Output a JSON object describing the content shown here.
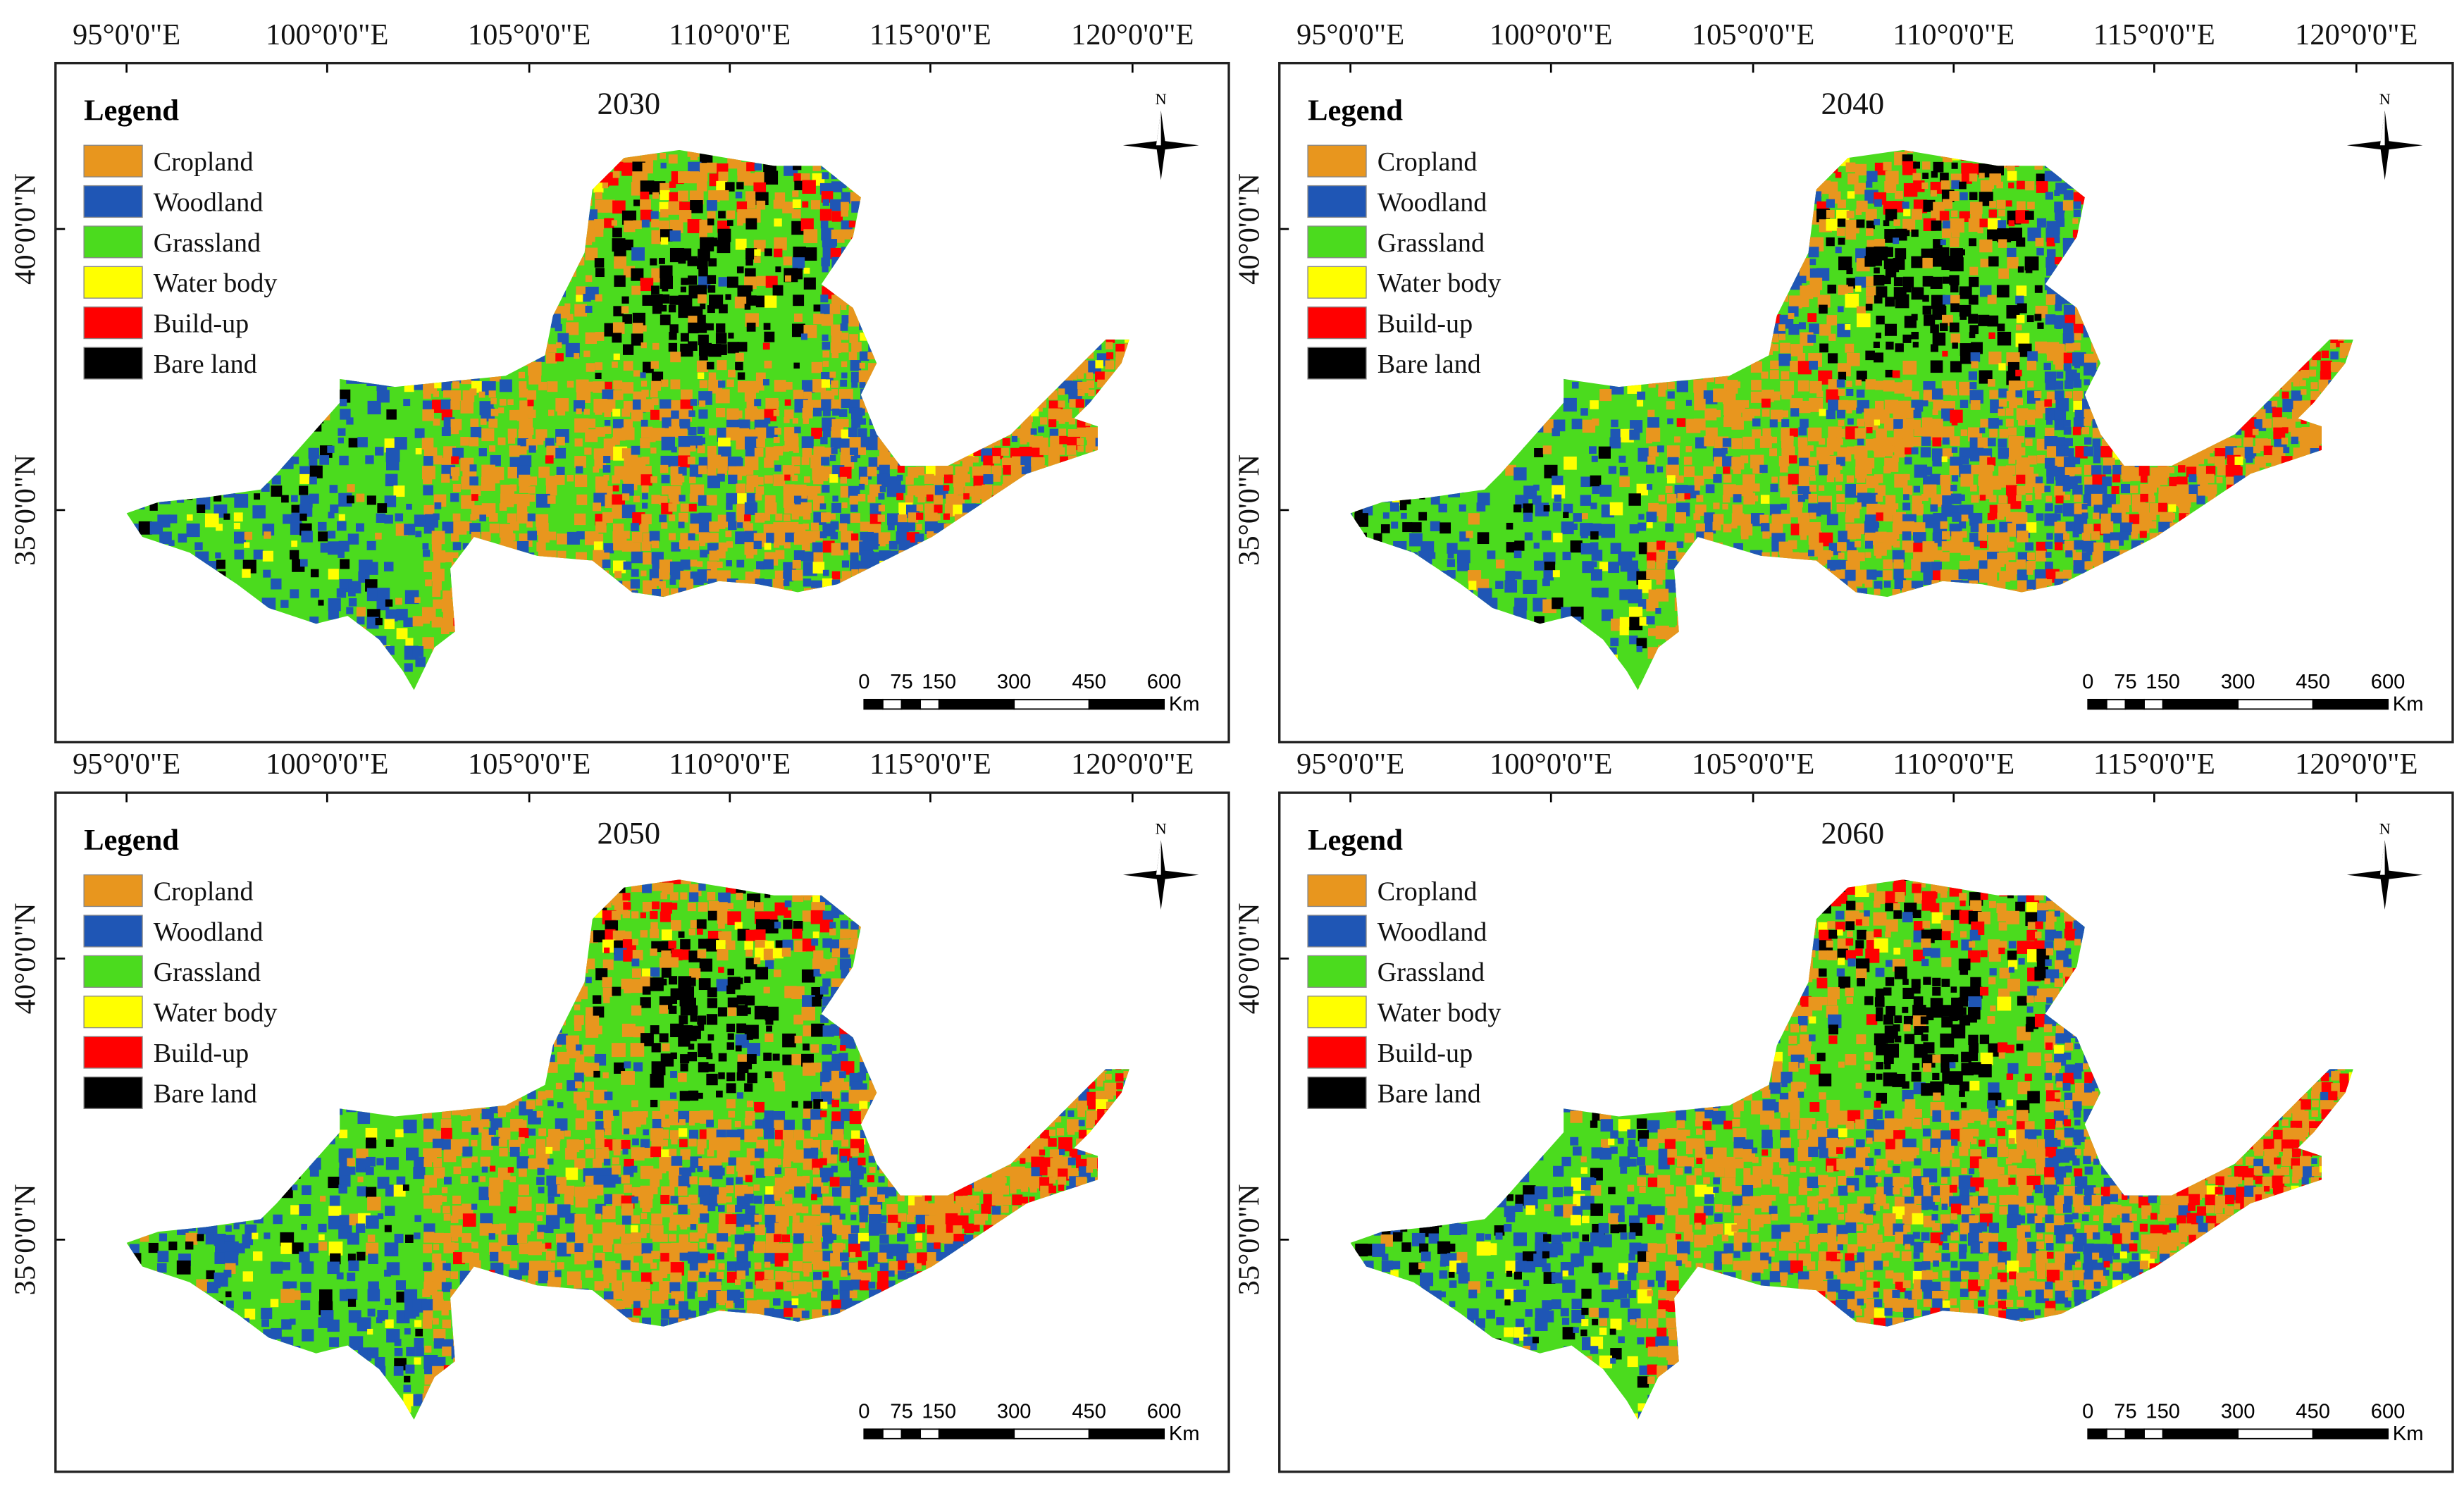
{
  "figure": {
    "legend_title": "Legend",
    "legend_items": [
      {
        "label": "Cropland",
        "color": "#E8961E"
      },
      {
        "label": "Woodland",
        "color": "#1F56B5"
      },
      {
        "label": "Grassland",
        "color": "#4BDB1E"
      },
      {
        "label": "Water body",
        "color": "#FFFF00"
      },
      {
        "label": "Build-up",
        "color": "#FF0000"
      },
      {
        "label": "Bare land",
        "color": "#000000"
      }
    ],
    "longitude_labels": [
      "95°0'0\"E",
      "100°0'0\"E",
      "105°0'0\"E",
      "110°0'0\"E",
      "115°0'0\"E",
      "120°0'0\"E"
    ],
    "latitude_labels": [
      "40°0'0\"N",
      "35°0'0\"N"
    ],
    "north_label": "N",
    "scale_bar": {
      "ticks": [
        "0",
        "75",
        "150",
        "300",
        "450",
        "600"
      ],
      "unit": "Km"
    },
    "panels": [
      {
        "year": "2030",
        "buildup_level": 0.25
      },
      {
        "year": "2040",
        "buildup_level": 0.45
      },
      {
        "year": "2050",
        "buildup_level": 0.7
      },
      {
        "year": "2060",
        "buildup_level": 1.0
      }
    ]
  }
}
